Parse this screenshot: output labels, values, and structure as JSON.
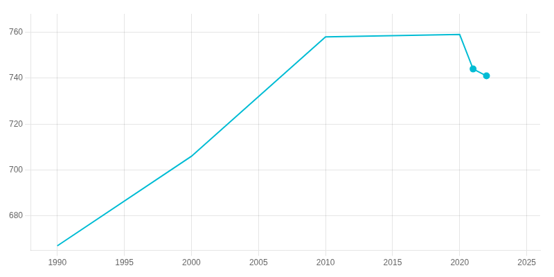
{
  "chart_data": {
    "type": "line",
    "x": [
      1990,
      2000,
      2010,
      2020,
      2021,
      2022
    ],
    "series": [
      {
        "values": [
          667,
          706,
          758,
          759,
          744,
          741
        ],
        "color": "#00BCD4",
        "line_style": "solid",
        "marker": "none"
      },
      {
        "values": [
          null,
          null,
          null,
          null,
          744,
          741
        ],
        "color": "#00BCD4",
        "line_style": "none",
        "marker": "circle"
      }
    ],
    "xlim": [
      1988,
      2026
    ],
    "ylim": [
      665,
      768
    ],
    "xticks": [
      1990,
      1995,
      2000,
      2005,
      2010,
      2015,
      2020,
      2025
    ],
    "yticks": [
      680,
      700,
      720,
      740,
      760
    ],
    "grid": true
  }
}
